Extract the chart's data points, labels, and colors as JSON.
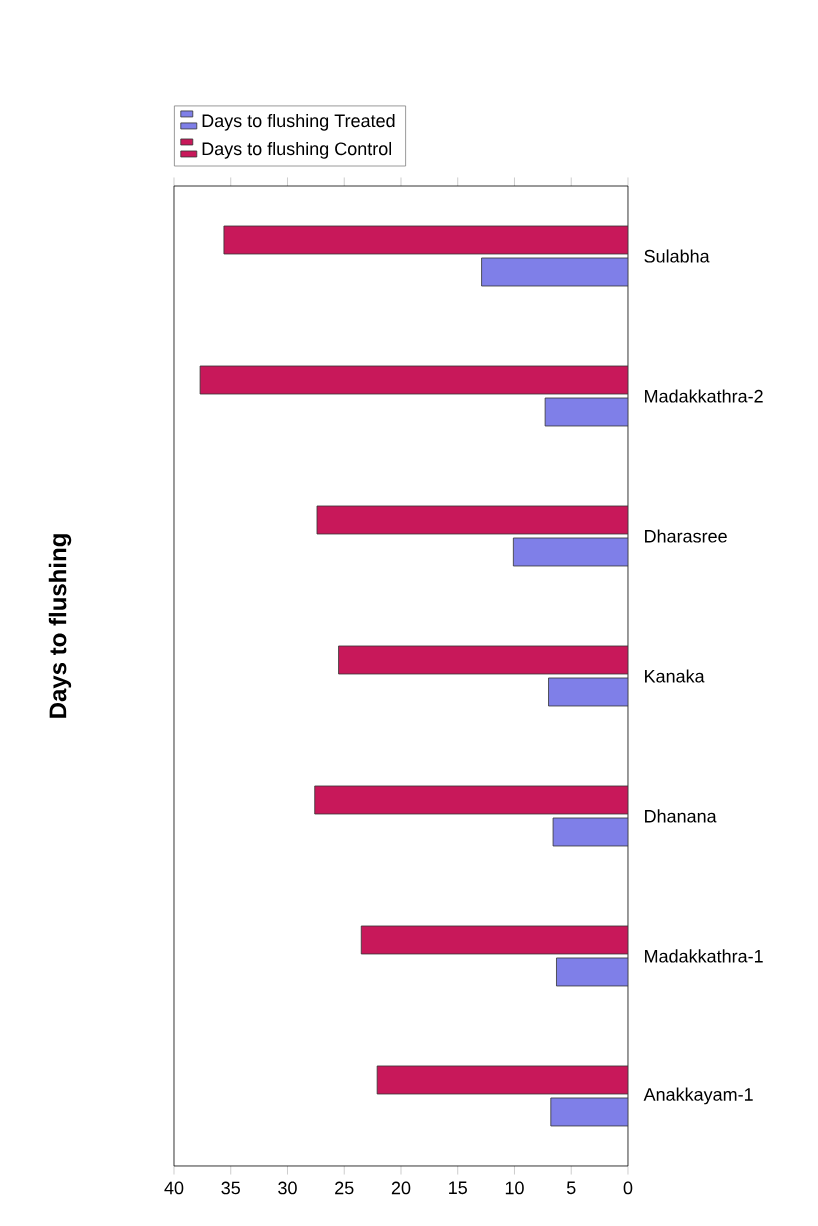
{
  "chart_data": {
    "type": "bar",
    "orientation": "horizontal",
    "title": "Days to flushing",
    "categories": [
      "Sulabha",
      "Madakkathra-2",
      "Dharasree",
      "Kanaka",
      "Dhanana",
      "Madakkathra-1",
      "Anakkayam-1"
    ],
    "series": [
      {
        "name": "Days to flushing Treated",
        "color": "#7f7fe8",
        "values": [
          12.9,
          7.3,
          10.1,
          7.0,
          6.6,
          6.3,
          6.8
        ]
      },
      {
        "name": "Days to flushing Control",
        "color": "#c8185a",
        "values": [
          35.6,
          37.7,
          27.4,
          25.5,
          27.6,
          23.5,
          22.1
        ]
      }
    ],
    "xlim": [
      40,
      0
    ],
    "xticks": [
      40,
      35,
      30,
      25,
      20,
      15,
      10,
      5,
      0
    ],
    "legend": "top left",
    "grid": false
  }
}
